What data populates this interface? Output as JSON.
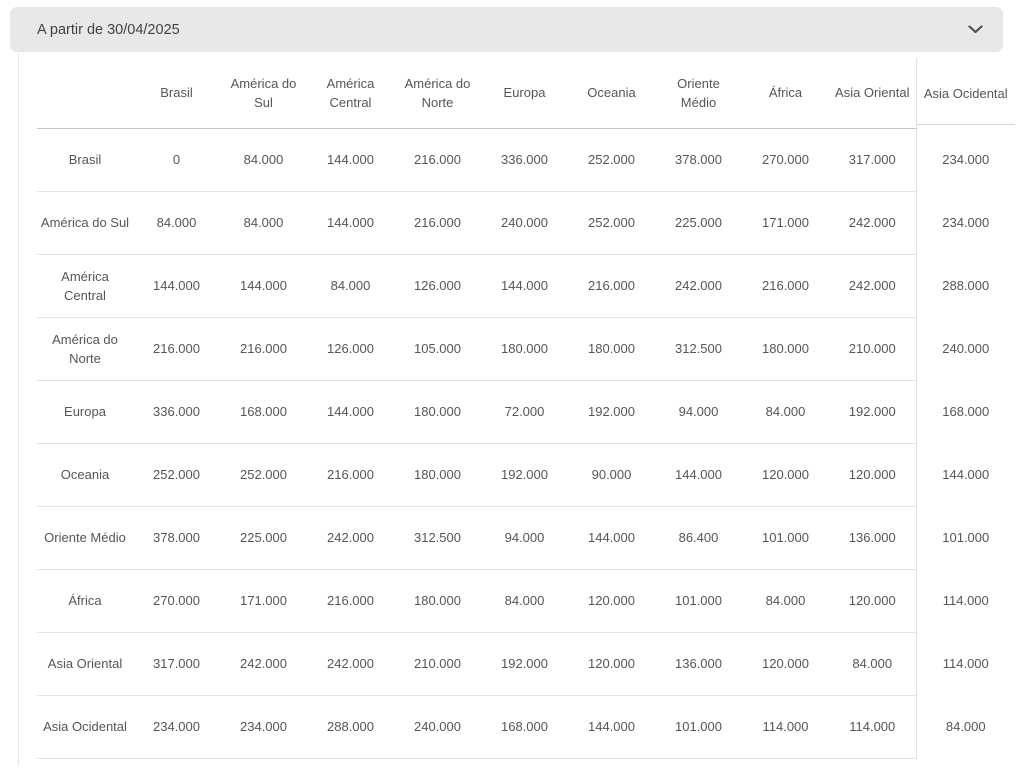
{
  "accordion": {
    "title": "A partir de 30/04/2025",
    "state": "expanded",
    "icons": {
      "toggle": "chevron-down-icon"
    },
    "colors": {
      "header_bg": "#e8e8e8",
      "title_text": "#3f4246"
    }
  },
  "table": {
    "colors": {
      "cell_text": "#54565a",
      "header_divider": "#c9c9c9",
      "row_divider": "#e2e3e5"
    },
    "columns": [
      "",
      "Brasil",
      "América do Sul",
      "América Central",
      "América do Norte",
      "Europa",
      "Oceania",
      "Oriente Médio",
      "África",
      "Asia Oriental",
      "Asia Ocidental"
    ],
    "rows": [
      {
        "label": "Brasil",
        "values": [
          "0",
          "84.000",
          "144.000",
          "216.000",
          "336.000",
          "252.000",
          "378.000",
          "270.000",
          "317.000",
          "234.000"
        ]
      },
      {
        "label": "América do Sul",
        "values": [
          "84.000",
          "84.000",
          "144.000",
          "216.000",
          "240.000",
          "252.000",
          "225.000",
          "171.000",
          "242.000",
          "234.000"
        ]
      },
      {
        "label": "América Central",
        "values": [
          "144.000",
          "144.000",
          "84.000",
          "126.000",
          "144.000",
          "216.000",
          "242.000",
          "216.000",
          "242.000",
          "288.000"
        ]
      },
      {
        "label": "América do Norte",
        "values": [
          "216.000",
          "216.000",
          "126.000",
          "105.000",
          "180.000",
          "180.000",
          "312.500",
          "180.000",
          "210.000",
          "240.000"
        ]
      },
      {
        "label": "Europa",
        "values": [
          "336.000",
          "168.000",
          "144.000",
          "180.000",
          "72.000",
          "192.000",
          "94.000",
          "84.000",
          "192.000",
          "168.000"
        ]
      },
      {
        "label": "Oceania",
        "values": [
          "252.000",
          "252.000",
          "216.000",
          "180.000",
          "192.000",
          "90.000",
          "144.000",
          "120.000",
          "120.000",
          "144.000"
        ]
      },
      {
        "label": "Oriente Médio",
        "values": [
          "378.000",
          "225.000",
          "242.000",
          "312.500",
          "94.000",
          "144.000",
          "86.400",
          "101.000",
          "136.000",
          "101.000"
        ]
      },
      {
        "label": "África",
        "values": [
          "270.000",
          "171.000",
          "216.000",
          "180.000",
          "84.000",
          "120.000",
          "101.000",
          "84.000",
          "120.000",
          "114.000"
        ]
      },
      {
        "label": "Asia Oriental",
        "values": [
          "317.000",
          "242.000",
          "242.000",
          "210.000",
          "192.000",
          "120.000",
          "136.000",
          "120.000",
          "84.000",
          "114.000"
        ]
      },
      {
        "label": "Asia Ocidental",
        "values": [
          "234.000",
          "234.000",
          "288.000",
          "240.000",
          "168.000",
          "144.000",
          "101.000",
          "114.000",
          "114.000",
          "84.000"
        ]
      }
    ]
  }
}
